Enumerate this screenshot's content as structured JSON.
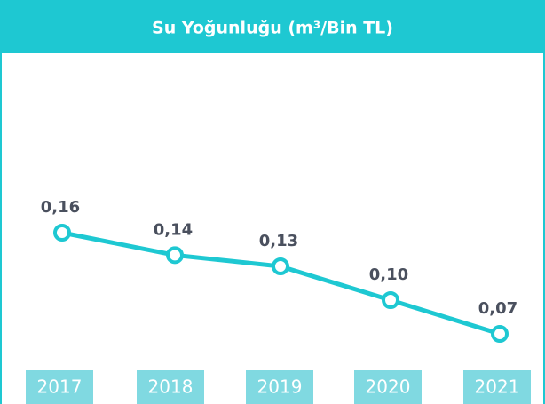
{
  "chart_data": {
    "type": "line",
    "title": "Su Yoğunluğu (m³/Bin TL)",
    "categories": [
      "2017",
      "2018",
      "2019",
      "2020",
      "2021"
    ],
    "values": [
      0.16,
      0.14,
      0.13,
      0.1,
      0.07
    ],
    "value_labels": [
      "0,16",
      "0,14",
      "0,13",
      "0,10",
      "0,07"
    ],
    "color": "#1ec8d2"
  }
}
